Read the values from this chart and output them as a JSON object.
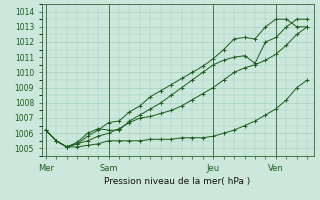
{
  "bg_color": "#cce8dc",
  "grid_color": "#99ccbb",
  "line_color": "#1a5c1a",
  "title": "Pression niveau de la mer( hPa )",
  "day_labels": [
    "Mer",
    "Sam",
    "Jeu",
    "Ven"
  ],
  "day_positions": [
    0,
    3,
    8,
    11
  ],
  "ylim": [
    1004.5,
    1014.5
  ],
  "yticks": [
    1005,
    1006,
    1007,
    1008,
    1009,
    1010,
    1011,
    1012,
    1013,
    1014
  ],
  "series1_x": [
    0,
    0.5,
    1.0,
    1.5,
    2.0,
    2.5,
    3.0,
    3.5,
    4.0,
    4.5,
    5.0,
    5.5,
    6.0,
    6.5,
    7.0,
    7.5,
    8.0,
    8.5,
    9.0,
    9.5,
    10.0,
    10.5,
    11.0,
    11.5,
    12.0,
    12.5
  ],
  "series1_y": [
    1006.2,
    1005.5,
    1005.1,
    1005.1,
    1005.2,
    1005.3,
    1005.5,
    1005.5,
    1005.5,
    1005.5,
    1005.6,
    1005.6,
    1005.6,
    1005.7,
    1005.7,
    1005.7,
    1005.8,
    1006.0,
    1006.2,
    1006.5,
    1006.8,
    1007.2,
    1007.6,
    1008.2,
    1009.0,
    1009.5
  ],
  "series2_x": [
    0,
    0.5,
    1.0,
    1.5,
    2.0,
    2.5,
    3.0,
    3.5,
    4.0,
    4.5,
    5.0,
    5.5,
    6.0,
    6.5,
    7.0,
    7.5,
    8.0,
    8.5,
    9.0,
    9.5,
    10.0,
    10.5,
    11.0,
    11.5,
    12.0,
    12.5
  ],
  "series2_y": [
    1006.2,
    1005.5,
    1005.1,
    1005.3,
    1005.5,
    1005.8,
    1006.0,
    1006.3,
    1006.7,
    1007.0,
    1007.1,
    1007.3,
    1007.5,
    1007.8,
    1008.2,
    1008.6,
    1009.0,
    1009.5,
    1010.0,
    1010.3,
    1010.5,
    1010.8,
    1011.2,
    1011.8,
    1012.5,
    1013.0
  ],
  "series3_x": [
    0,
    0.5,
    1.0,
    1.5,
    2.0,
    2.5,
    3.0,
    3.5,
    4.0,
    4.5,
    5.0,
    5.5,
    6.0,
    6.5,
    7.0,
    7.5,
    8.0,
    8.5,
    9.0,
    9.5,
    10.0,
    10.5,
    11.0,
    11.5,
    12.0,
    12.5
  ],
  "series3_y": [
    1006.2,
    1005.5,
    1005.1,
    1005.4,
    1006.0,
    1006.3,
    1006.2,
    1006.2,
    1006.8,
    1007.2,
    1007.6,
    1008.0,
    1008.5,
    1009.0,
    1009.5,
    1010.0,
    1010.5,
    1010.8,
    1011.0,
    1011.1,
    1010.6,
    1012.0,
    1012.3,
    1013.0,
    1013.5,
    1013.5
  ],
  "series4_x": [
    0,
    0.5,
    1.0,
    1.5,
    2.0,
    2.5,
    3.0,
    3.5,
    4.0,
    4.5,
    5.0,
    5.5,
    6.0,
    6.5,
    7.0,
    7.5,
    8.0,
    8.5,
    9.0,
    9.5,
    10.0,
    10.5,
    11.0,
    11.5,
    12.0,
    12.5
  ],
  "series4_y": [
    1006.2,
    1005.5,
    1005.1,
    1005.3,
    1005.8,
    1006.2,
    1006.7,
    1006.8,
    1007.4,
    1007.8,
    1008.4,
    1008.8,
    1009.2,
    1009.6,
    1010.0,
    1010.4,
    1010.9,
    1011.5,
    1012.2,
    1012.3,
    1012.2,
    1013.0,
    1013.5,
    1013.5,
    1013.0,
    1013.0
  ],
  "vline_positions": [
    0,
    3,
    8,
    11
  ],
  "xlim": [
    -0.2,
    12.8
  ]
}
